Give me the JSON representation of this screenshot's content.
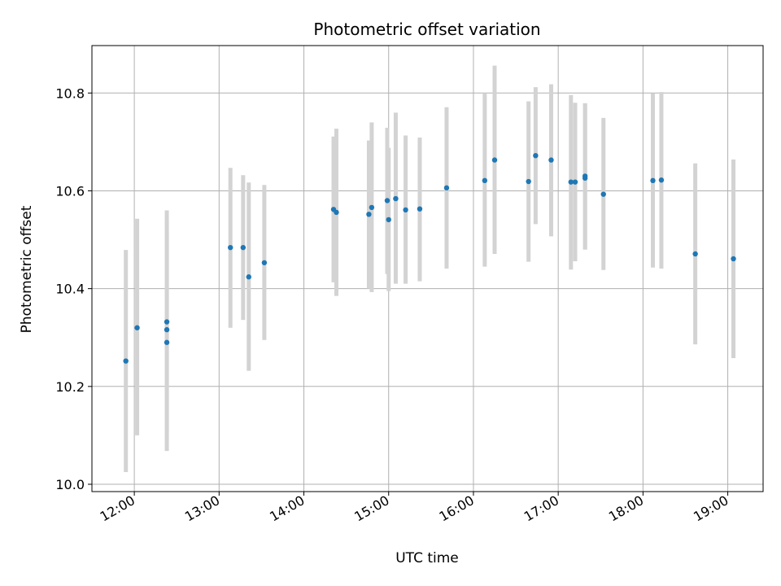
{
  "chart_data": {
    "type": "scatter",
    "title": "Photometric offset variation",
    "xlabel": "UTC time",
    "ylabel": "Photometric offset",
    "x_ticks": [
      "12:00",
      "13:00",
      "14:00",
      "15:00",
      "16:00",
      "17:00",
      "18:00",
      "19:00"
    ],
    "y_ticks": [
      "10.0",
      "10.2",
      "10.4",
      "10.6",
      "10.8"
    ],
    "xlim": [
      "11:30",
      "19:25"
    ],
    "ylim": [
      9.985,
      10.897
    ],
    "grid": true,
    "marker_color": "#1f77b4",
    "errorbar_color": "#d3d3d3",
    "points": [
      {
        "x": "11:54",
        "y": 10.252,
        "yerr_low": 10.025,
        "yerr_high": 10.479
      },
      {
        "x": "12:02",
        "y": 10.32,
        "yerr_low": 10.1,
        "yerr_high": 10.543
      },
      {
        "x": "12:23",
        "y": 10.332,
        "yerr_low": 10.108,
        "yerr_high": 10.56
      },
      {
        "x": "12:23",
        "y": 10.316,
        "yerr_low": 10.092,
        "yerr_high": 10.542
      },
      {
        "x": "12:23",
        "y": 10.29,
        "yerr_low": 10.068,
        "yerr_high": 10.515
      },
      {
        "x": "13:08",
        "y": 10.484,
        "yerr_low": 10.32,
        "yerr_high": 10.647
      },
      {
        "x": "13:17",
        "y": 10.484,
        "yerr_low": 10.336,
        "yerr_high": 10.632
      },
      {
        "x": "13:21",
        "y": 10.424,
        "yerr_low": 10.232,
        "yerr_high": 10.617
      },
      {
        "x": "13:32",
        "y": 10.453,
        "yerr_low": 10.295,
        "yerr_high": 10.612
      },
      {
        "x": "14:21",
        "y": 10.562,
        "yerr_low": 10.413,
        "yerr_high": 10.711
      },
      {
        "x": "14:23",
        "y": 10.556,
        "yerr_low": 10.385,
        "yerr_high": 10.727
      },
      {
        "x": "14:46",
        "y": 10.552,
        "yerr_low": 10.4,
        "yerr_high": 10.703
      },
      {
        "x": "14:48",
        "y": 10.566,
        "yerr_low": 10.393,
        "yerr_high": 10.74
      },
      {
        "x": "14:59",
        "y": 10.58,
        "yerr_low": 10.43,
        "yerr_high": 10.729
      },
      {
        "x": "15:00",
        "y": 10.541,
        "yerr_low": 10.395,
        "yerr_high": 10.688
      },
      {
        "x": "15:05",
        "y": 10.584,
        "yerr_low": 10.41,
        "yerr_high": 10.76
      },
      {
        "x": "15:12",
        "y": 10.561,
        "yerr_low": 10.41,
        "yerr_high": 10.713
      },
      {
        "x": "15:22",
        "y": 10.563,
        "yerr_low": 10.415,
        "yerr_high": 10.709
      },
      {
        "x": "15:41",
        "y": 10.606,
        "yerr_low": 10.441,
        "yerr_high": 10.771
      },
      {
        "x": "16:08",
        "y": 10.621,
        "yerr_low": 10.445,
        "yerr_high": 10.8
      },
      {
        "x": "16:15",
        "y": 10.663,
        "yerr_low": 10.471,
        "yerr_high": 10.856
      },
      {
        "x": "16:39",
        "y": 10.619,
        "yerr_low": 10.455,
        "yerr_high": 10.783
      },
      {
        "x": "16:44",
        "y": 10.672,
        "yerr_low": 10.532,
        "yerr_high": 10.812
      },
      {
        "x": "16:55",
        "y": 10.663,
        "yerr_low": 10.507,
        "yerr_high": 10.818
      },
      {
        "x": "17:09",
        "y": 10.618,
        "yerr_low": 10.439,
        "yerr_high": 10.796
      },
      {
        "x": "17:12",
        "y": 10.618,
        "yerr_low": 10.456,
        "yerr_high": 10.78
      },
      {
        "x": "17:19",
        "y": 10.63,
        "yerr_low": 10.48,
        "yerr_high": 10.779
      },
      {
        "x": "17:19",
        "y": 10.626,
        "yerr_low": 10.48,
        "yerr_high": 10.779
      },
      {
        "x": "17:32",
        "y": 10.593,
        "yerr_low": 10.438,
        "yerr_high": 10.749
      },
      {
        "x": "18:07",
        "y": 10.621,
        "yerr_low": 10.443,
        "yerr_high": 10.799
      },
      {
        "x": "18:13",
        "y": 10.622,
        "yerr_low": 10.441,
        "yerr_high": 10.802
      },
      {
        "x": "18:37",
        "y": 10.471,
        "yerr_low": 10.286,
        "yerr_high": 10.656
      },
      {
        "x": "19:04",
        "y": 10.461,
        "yerr_low": 10.258,
        "yerr_high": 10.664
      }
    ]
  }
}
